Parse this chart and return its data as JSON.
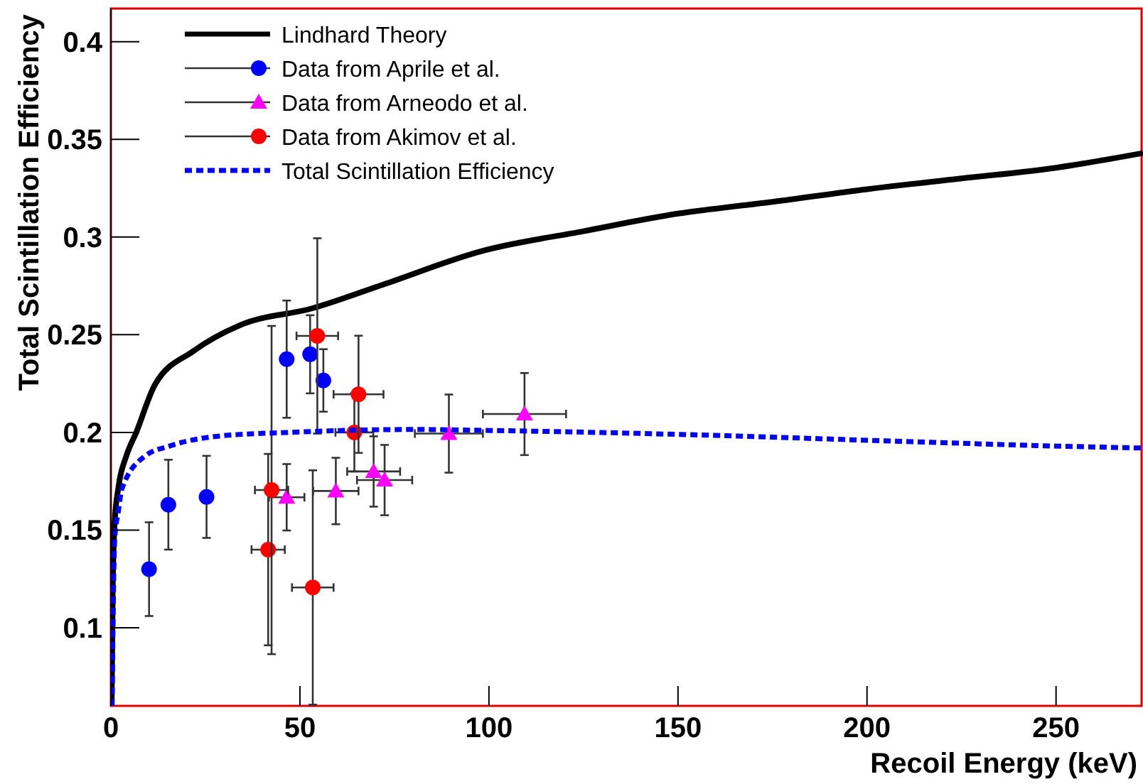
{
  "chart_data": {
    "type": "scatter",
    "xlabel": "Recoil Energy (keV)",
    "ylabel": "Total Scintillation Efficiency",
    "xlim": [
      0,
      273
    ],
    "ylim": [
      0.06,
      0.417
    ],
    "xticks": [
      0,
      50,
      100,
      150,
      200,
      250
    ],
    "yticks": [
      0.1,
      0.15,
      0.2,
      0.25,
      0.3,
      0.35,
      0.4
    ],
    "grid": false,
    "legend": "top left",
    "series": [
      {
        "name": "Lindhard Theory",
        "type": "line",
        "color": "#000000",
        "line_style": "solid",
        "marker": "none",
        "x": [
          0.2,
          0.5,
          1,
          2,
          4.1,
          6.7,
          11.7,
          21.8,
          34.3,
          53.2,
          72,
          98.4,
          125,
          150,
          175,
          200,
          225,
          250,
          273
        ],
        "values": [
          0.06,
          0.12,
          0.154,
          0.172,
          0.188,
          0.2,
          0.2246,
          0.2416,
          0.255,
          0.2635,
          0.2757,
          0.293,
          0.303,
          0.312,
          0.318,
          0.3245,
          0.33,
          0.3355,
          0.343
        ]
      },
      {
        "name": "Data from Aprile et al.",
        "color": "#0000ff",
        "marker": "circle",
        "x": [
          10.1,
          15.2,
          25.3,
          46.5,
          52.7,
          56.2
        ],
        "values": [
          0.13,
          0.163,
          0.167,
          0.2375,
          0.24,
          0.2266
        ],
        "errors": [
          0.024,
          0.023,
          0.021,
          0.03,
          0.02,
          0.016
        ]
      },
      {
        "name": "Data from Arneodo et al.",
        "color": "#ff00ff",
        "marker": "triangle",
        "x": [
          46.5,
          59.5,
          69.5,
          72.4,
          89.4,
          109.4
        ],
        "values": [
          0.1668,
          0.17,
          0.18,
          0.1756,
          0.1994,
          0.2094
        ],
        "errors": [
          0.017,
          0.017,
          0.018,
          0.018,
          0.02,
          0.021
        ],
        "xerrors": [
          4.7,
          6,
          7,
          7.3,
          9,
          11
        ]
      },
      {
        "name": "Data from Akimov et al.",
        "color": "#ff0000",
        "marker": "circle",
        "x": [
          41.6,
          42.5,
          53.4,
          54.6,
          64.4,
          65.5
        ],
        "values": [
          0.14,
          0.1705,
          0.1206,
          0.2494,
          0.2,
          0.2195
        ],
        "errors": [
          0.049,
          0.084,
          0.06,
          0.05,
          0.02,
          0.03
        ],
        "xerrors": [
          4.4,
          4.4,
          5.5,
          5.5,
          5,
          6.6
        ]
      },
      {
        "name": "Total Scintillation Efficiency",
        "type": "line",
        "color": "#0000ff",
        "line_style": "dotted",
        "marker": "none",
        "x": [
          0.3,
          1,
          2,
          2.9,
          9.1,
          15.5,
          28,
          47,
          80,
          100,
          150,
          200,
          250,
          273
        ],
        "values": [
          0.06,
          0.145,
          0.16,
          0.171,
          0.188,
          0.193,
          0.198,
          0.2,
          0.2015,
          0.201,
          0.199,
          0.196,
          0.193,
          0.192
        ]
      }
    ]
  }
}
